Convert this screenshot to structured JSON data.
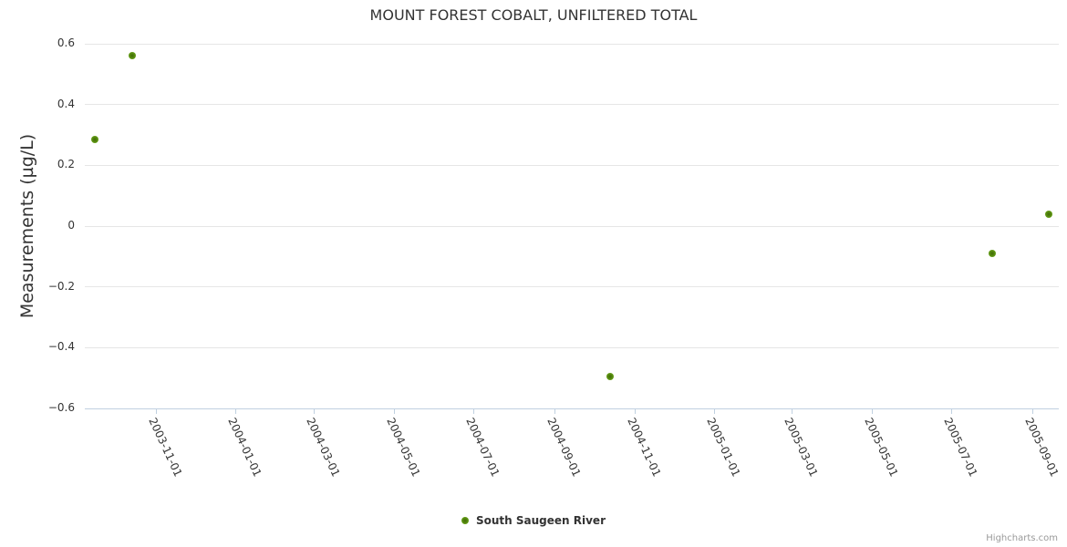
{
  "chart_data": {
    "type": "scatter",
    "title": "MOUNT FOREST COBALT, UNFILTERED TOTAL",
    "xlabel": "",
    "ylabel": "Measurements (µg/L)",
    "ylim": [
      -0.6,
      0.6
    ],
    "x_range": [
      "2003-09-08",
      "2005-09-21"
    ],
    "grid": "horizontal-only",
    "legend_position": "bottom-center",
    "series": [
      {
        "name": "South Saugeen River",
        "color": "#7cbe2b",
        "points": [
          {
            "date": "2003-09-16",
            "value": 0.285
          },
          {
            "date": "2003-10-14",
            "value": 0.56
          },
          {
            "date": "2004-10-13",
            "value": -0.495
          },
          {
            "date": "2005-08-01",
            "value": -0.09
          },
          {
            "date": "2005-09-13",
            "value": 0.038
          }
        ]
      }
    ],
    "x_ticks": [
      "2003-11-01",
      "2004-01-01",
      "2004-03-01",
      "2004-05-01",
      "2004-07-01",
      "2004-09-01",
      "2004-11-01",
      "2005-01-01",
      "2005-03-01",
      "2005-05-01",
      "2005-07-01",
      "2005-09-01"
    ],
    "y_ticks": [
      {
        "value": -0.6,
        "label": "−0.6"
      },
      {
        "value": -0.4,
        "label": "−0.4"
      },
      {
        "value": -0.2,
        "label": "−0.2"
      },
      {
        "value": 0,
        "label": "0"
      },
      {
        "value": 0.2,
        "label": "0.2"
      },
      {
        "value": 0.4,
        "label": "0.4"
      },
      {
        "value": 0.6,
        "label": "0.6"
      }
    ]
  },
  "legend": {
    "label": "South Saugeen River"
  },
  "credits": {
    "label": "Highcharts.com"
  },
  "colors": {
    "point_edge": "#7cbe2b",
    "point_center": "#3f6b07",
    "grid": "#e6e6e6",
    "axis_line": "#c0d0e0",
    "text": "#333333",
    "credits_text": "#999999"
  }
}
